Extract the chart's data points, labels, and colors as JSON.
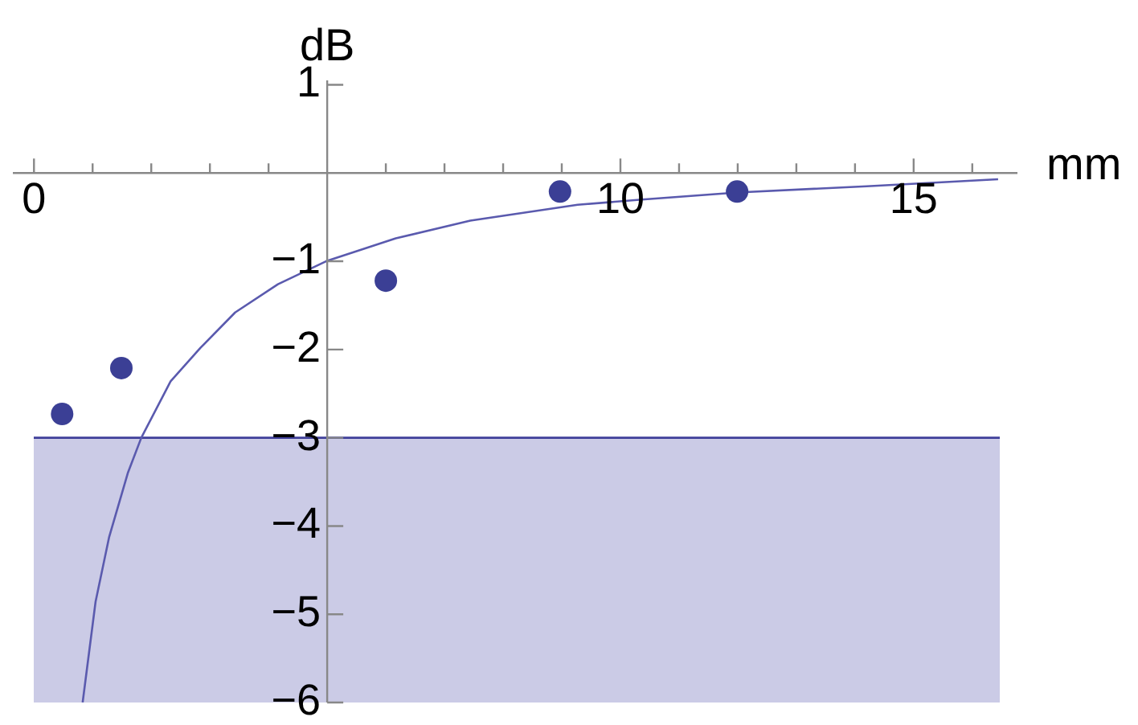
{
  "chart_data": {
    "type": "scatter",
    "xlabel": "mm",
    "ylabel": "dB",
    "xlim": [
      -0.36,
      16.77
    ],
    "ylim": [
      -6,
      1.05
    ],
    "xticks": [
      0,
      {
        "value": 1,
        "label": null
      },
      {
        "value": 2,
        "label": null
      },
      {
        "value": 3,
        "label": null
      },
      {
        "value": 4,
        "label": null
      },
      {
        "value": 5,
        "label": null
      },
      {
        "value": 6,
        "label": null
      },
      {
        "value": 7,
        "label": null
      },
      {
        "value": 8,
        "label": null
      },
      {
        "value": 9,
        "label": null
      },
      10,
      {
        "value": 11,
        "label": null
      },
      {
        "value": 12,
        "label": null
      },
      {
        "value": 13,
        "label": null
      },
      {
        "value": 14,
        "label": null
      },
      15,
      {
        "value": 16,
        "label": null
      }
    ],
    "yticks": [
      1,
      {
        "value": 0,
        "label": null
      },
      {
        "value": -1,
        "label": "−1"
      },
      {
        "value": -2,
        "label": "−2"
      },
      {
        "value": -3,
        "label": "−3"
      },
      {
        "value": -4,
        "label": "−4"
      },
      {
        "value": -5,
        "label": "−5"
      },
      {
        "value": -6,
        "label": "−6"
      }
    ],
    "legend": false,
    "bands": [
      {
        "axis": "y",
        "from": -6,
        "to": -3,
        "color": "#cbcbe6"
      }
    ],
    "ref_lines": [
      {
        "axis": "y",
        "value": -3,
        "color": "#3f3f9a"
      }
    ],
    "series": [
      {
        "type": "scatter",
        "marker": "circle",
        "color": "#3b3f95",
        "x": [
          0.48,
          1.49,
          6.0,
          8.97,
          11.99
        ],
        "values": [
          -2.73,
          -2.21,
          -1.22,
          -0.21,
          -0.21
        ]
      },
      {
        "type": "line",
        "marker": "none",
        "color": "#5a5aae",
        "x": [
          0.83,
          1.05,
          1.28,
          1.6,
          1.83,
          2.33,
          2.84,
          3.43,
          4.16,
          4.98,
          6.17,
          7.44,
          9.27,
          10.37,
          11.99,
          14.2,
          16.44
        ],
        "values": [
          -6.0,
          -4.86,
          -4.13,
          -3.4,
          -3.0,
          -2.36,
          -1.98,
          -1.58,
          -1.26,
          -1.0,
          -0.74,
          -0.54,
          -0.36,
          -0.3,
          -0.22,
          -0.15,
          -0.07
        ]
      }
    ]
  }
}
